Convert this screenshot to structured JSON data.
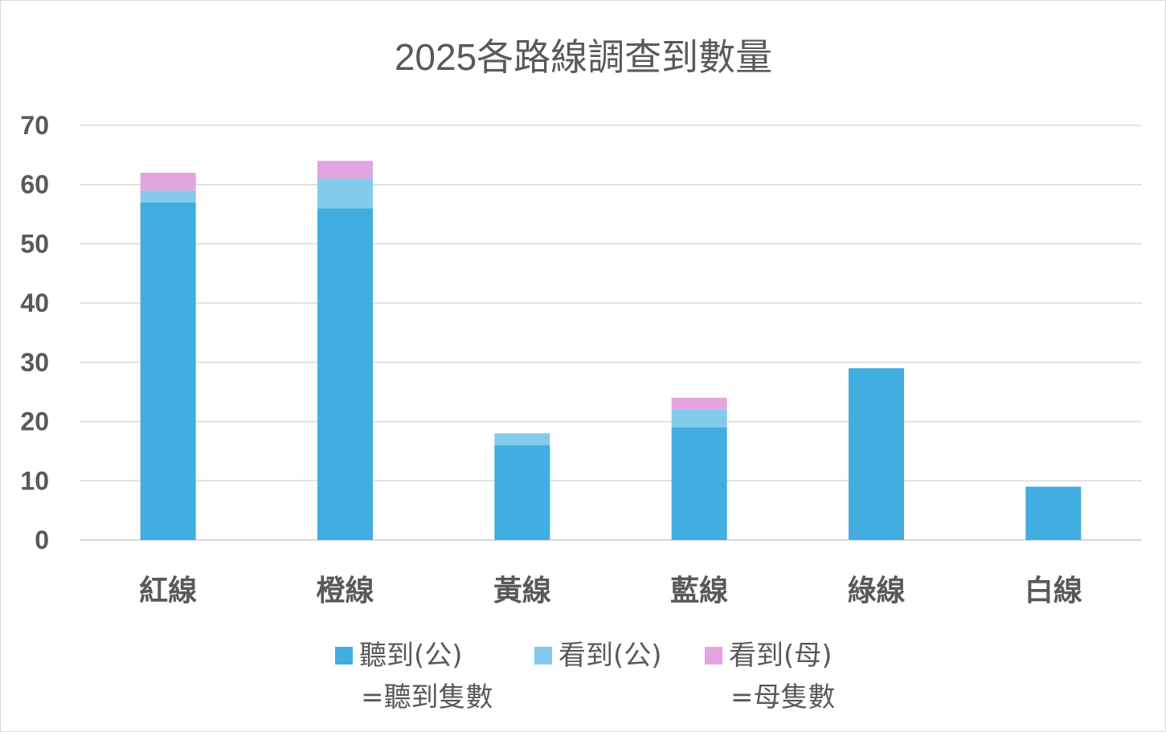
{
  "chart_data": {
    "type": "bar",
    "stacked": true,
    "title": "2025各路線調查到數量",
    "xlabel": "",
    "ylabel": "",
    "categories": [
      "紅線",
      "橙線",
      "黃線",
      "藍線",
      "綠線",
      "白線"
    ],
    "series": [
      {
        "name": "聽到(公)",
        "name_note": "=聽到隻數",
        "color": "#41ade0",
        "values": [
          57,
          56,
          16,
          19,
          29,
          9
        ]
      },
      {
        "name": "看到(公)",
        "name_note": "",
        "color": "#83cbec",
        "values": [
          2,
          5,
          2,
          3,
          0,
          0
        ]
      },
      {
        "name": "看到(母)",
        "name_note": "=母隻數",
        "color": "#e2a5e0",
        "values": [
          3,
          3,
          0,
          2,
          0,
          0
        ]
      }
    ],
    "yticks": [
      "0",
      "10",
      "20",
      "30",
      "40",
      "50",
      "60",
      "70"
    ],
    "ylim": [
      0,
      70
    ],
    "grid": true,
    "legend_position": "bottom"
  }
}
